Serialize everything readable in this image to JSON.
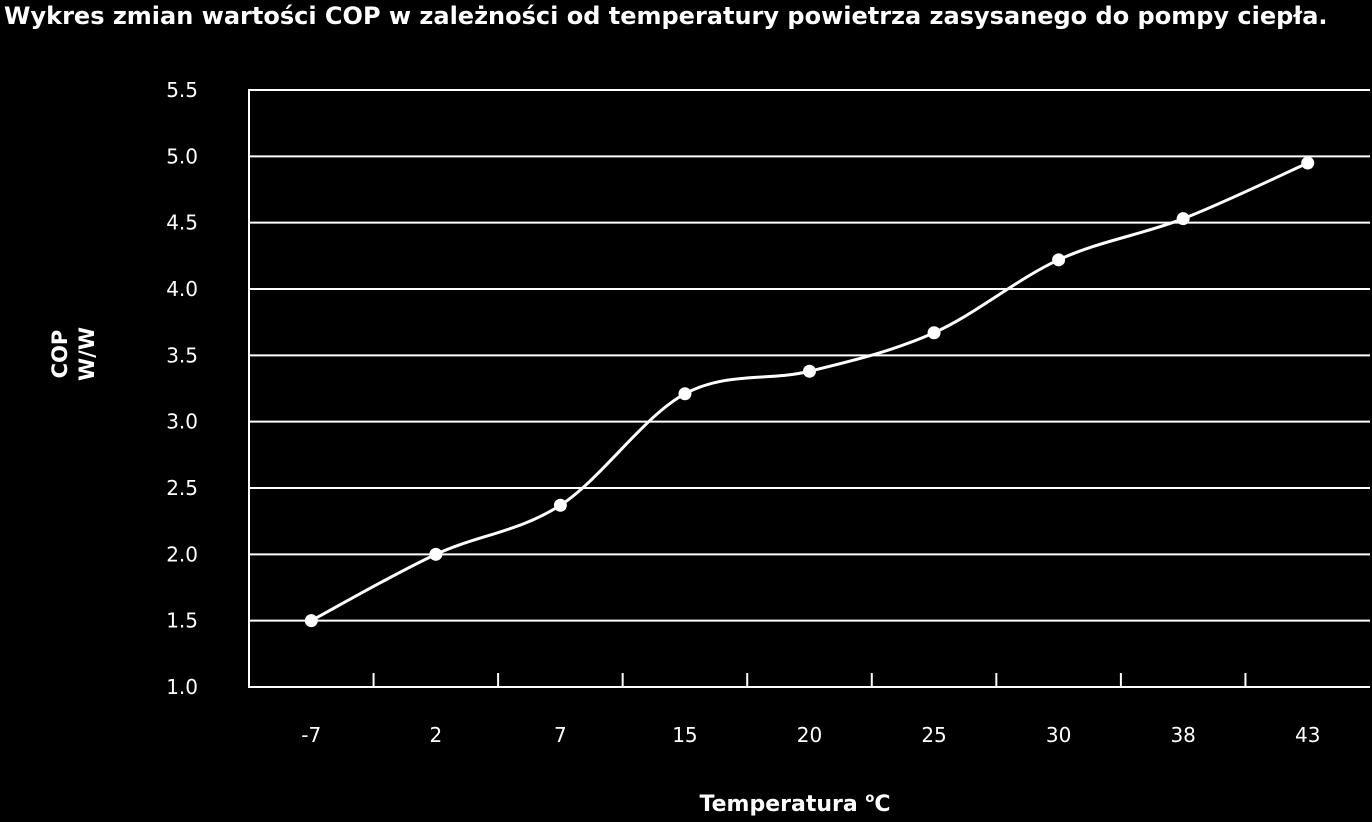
{
  "chart_data": {
    "type": "line",
    "title": "Wykres zmian wartości COP w zależności od temperatury powietrza zasysanego do pompy ciepła.",
    "xlabel": "Temperatura",
    "xlabel_unit_sup": "o",
    "xlabel_unit": "C",
    "ylabel_line1": "COP",
    "ylabel_line2": "W/W",
    "categories": [
      "-7",
      "2",
      "7",
      "15",
      "20",
      "25",
      "30",
      "38",
      "43"
    ],
    "values": [
      1.5,
      2.0,
      2.37,
      3.21,
      3.38,
      3.67,
      4.22,
      4.53,
      4.95
    ],
    "ylim": [
      1.0,
      5.5
    ],
    "yticks": [
      "1.0",
      "1.5",
      "2.0",
      "2.5",
      "3.0",
      "3.5",
      "4.0",
      "4.5",
      "5.0",
      "5.5"
    ],
    "grid": true,
    "legend": "none",
    "colors": {
      "background": "#000000",
      "line": "#ffffff",
      "grid": "#ffffff",
      "text": "#ffffff"
    }
  }
}
